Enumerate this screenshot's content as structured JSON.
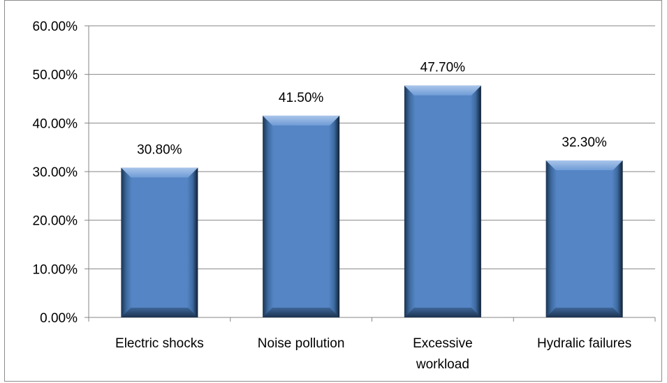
{
  "chart_data": {
    "type": "bar",
    "categories": [
      "Electric shocks",
      "Noise pollution",
      "Excessive workload",
      "Hydralic failures"
    ],
    "category_label_lines": [
      [
        "Electric shocks"
      ],
      [
        "Noise pollution"
      ],
      [
        "Excessive",
        "workload"
      ],
      [
        "Hydralic failures"
      ]
    ],
    "values": [
      30.8,
      41.5,
      47.7,
      32.3
    ],
    "data_labels": [
      "30.80%",
      "41.50%",
      "47.70%",
      "32.30%"
    ],
    "y_ticks": [
      0,
      10,
      20,
      30,
      40,
      50,
      60
    ],
    "y_tick_labels": [
      "0.00%",
      "10.00%",
      "20.00%",
      "30.00%",
      "40.00%",
      "50.00%",
      "60.00%"
    ],
    "ylim": [
      0,
      60
    ],
    "grid": true,
    "legend": "none",
    "bar_color": "#4f81bd",
    "title": "",
    "xlabel": "",
    "ylabel": ""
  }
}
